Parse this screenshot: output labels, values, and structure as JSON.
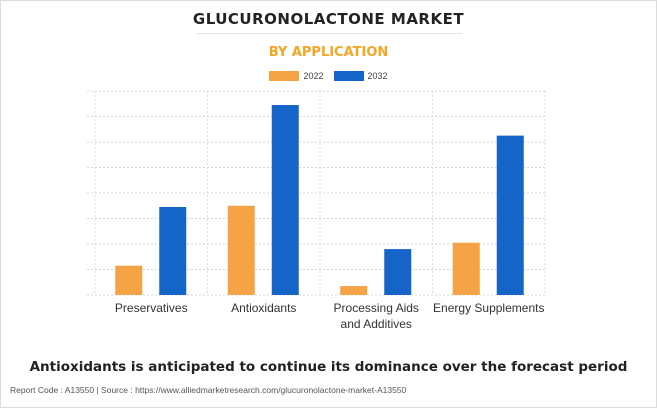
{
  "footer": "Report Code : A13550  |  Source : https://www.alliedmarketresearch.com/glucuronolactone-market-A13550",
  "note": "Antioxidants is anticipated to continue its dominance over the forecast period",
  "colors": {
    "2022": "#f4a445",
    "2032": "#1565c8"
  },
  "chart_data": {
    "type": "bar",
    "title": "GLUCURONOLACTONE MARKET",
    "subtitle": "BY APPLICATION",
    "categories": [
      [
        "Preservatives"
      ],
      [
        "Antioxidants"
      ],
      [
        "Processing Aids",
        "and Additives"
      ],
      [
        "Energy Supplements"
      ]
    ],
    "series": [
      {
        "name": "2022",
        "values": [
          1.15,
          3.5,
          0.35,
          2.05
        ]
      },
      {
        "name": "2032",
        "values": [
          3.45,
          7.45,
          1.8,
          6.25
        ]
      }
    ],
    "ylim": [
      0,
      8
    ],
    "y_tick_labels_shown": false,
    "grid": true,
    "legend": "top-center"
  }
}
